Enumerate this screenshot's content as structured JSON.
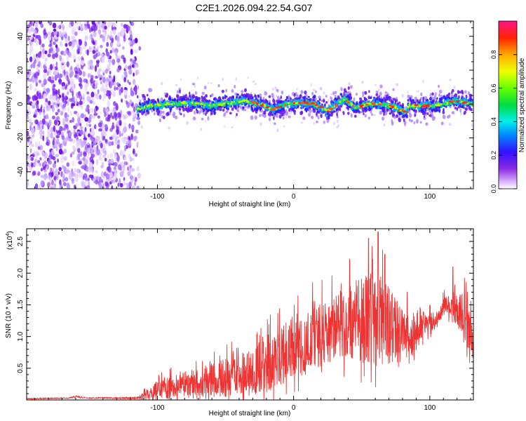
{
  "title": "C2E1.2026.094.22.54.G07",
  "chart_data": [
    {
      "type": "heatmap",
      "title": "C2E1.2026.094.22.54.G07",
      "xlabel": "Height of straight line (km)",
      "ylabel": "Frequency (Hz)",
      "xlim": [
        -196,
        132
      ],
      "ylim": [
        -50,
        49
      ],
      "xticks": [
        -100,
        0,
        100
      ],
      "yticks": [
        -40,
        -20,
        0,
        20,
        40
      ],
      "colorbar": {
        "label": "Normalized spectral amplitude",
        "range": [
          0,
          1
        ],
        "ticks": [
          "0.0",
          "0.2",
          "0.4",
          "0.6",
          "0.8"
        ]
      },
      "noise_region_x": [
        -196,
        -115
      ],
      "trace": [
        {
          "x": -115,
          "y": -3
        },
        {
          "x": -105,
          "y": -1
        },
        {
          "x": -90,
          "y": 0
        },
        {
          "x": -75,
          "y": 1
        },
        {
          "x": -60,
          "y": -1
        },
        {
          "x": -45,
          "y": 1
        },
        {
          "x": -35,
          "y": 2
        },
        {
          "x": -25,
          "y": 0
        },
        {
          "x": -15,
          "y": -3
        },
        {
          "x": -5,
          "y": 0
        },
        {
          "x": 5,
          "y": 1
        },
        {
          "x": 15,
          "y": 0
        },
        {
          "x": 25,
          "y": -4
        },
        {
          "x": 32,
          "y": 0
        },
        {
          "x": 38,
          "y": 3
        },
        {
          "x": 45,
          "y": -2
        },
        {
          "x": 55,
          "y": 0
        },
        {
          "x": 65,
          "y": 0
        },
        {
          "x": 75,
          "y": -2
        },
        {
          "x": 82,
          "y": -5
        },
        {
          "x": 85,
          "y": -1
        },
        {
          "x": 100,
          "y": -1
        },
        {
          "x": 110,
          "y": 0
        },
        {
          "x": 118,
          "y": 2
        },
        {
          "x": 132,
          "y": 0
        }
      ]
    },
    {
      "type": "line",
      "xlabel": "Height of straight line (km)",
      "ylabel": "SNR (10 * v/v)",
      "y_multiplier": "(x10",
      "y_multiplier_exp": "4",
      "y_multiplier_close": ")",
      "xlim": [
        -196,
        132
      ],
      "ylim": [
        0,
        2.7
      ],
      "xticks": [
        -100,
        0,
        100
      ],
      "yticks": [
        "0.5",
        "1.0",
        "1.5",
        "2.0",
        "2.5"
      ],
      "color": "#ee3333",
      "series": [
        {
          "name": "SNR",
          "envelope": [
            {
              "x": -196,
              "base": 0.02,
              "amp": 0.01
            },
            {
              "x": -165,
              "base": 0.03,
              "amp": 0.01
            },
            {
              "x": -160,
              "base": 0.05,
              "amp": 0.02
            },
            {
              "x": -150,
              "base": 0.03,
              "amp": 0.01
            },
            {
              "x": -115,
              "base": 0.03,
              "amp": 0.02
            },
            {
              "x": -100,
              "base": 0.15,
              "amp": 0.15
            },
            {
              "x": -80,
              "base": 0.25,
              "amp": 0.2
            },
            {
              "x": -70,
              "base": 0.25,
              "amp": 0.25
            },
            {
              "x": -50,
              "base": 0.35,
              "amp": 0.3
            },
            {
              "x": -30,
              "base": 0.45,
              "amp": 0.35
            },
            {
              "x": -15,
              "base": 0.6,
              "amp": 0.45
            },
            {
              "x": 0,
              "base": 0.85,
              "amp": 0.5
            },
            {
              "x": 10,
              "base": 0.9,
              "amp": 0.5
            },
            {
              "x": 25,
              "base": 1.1,
              "amp": 0.5
            },
            {
              "x": 40,
              "base": 1.25,
              "amp": 0.6
            },
            {
              "x": 55,
              "base": 1.3,
              "amp": 0.75
            },
            {
              "x": 65,
              "base": 1.25,
              "amp": 0.75
            },
            {
              "x": 75,
              "base": 1.05,
              "amp": 0.55
            },
            {
              "x": 85,
              "base": 1.0,
              "amp": 0.45
            },
            {
              "x": 95,
              "base": 1.2,
              "amp": 0.2
            },
            {
              "x": 105,
              "base": 1.25,
              "amp": 0.12
            },
            {
              "x": 110,
              "base": 1.45,
              "amp": 0.15
            },
            {
              "x": 118,
              "base": 1.5,
              "amp": 0.2
            },
            {
              "x": 125,
              "base": 1.3,
              "amp": 0.4
            },
            {
              "x": 132,
              "base": 1.0,
              "amp": 0.3
            }
          ],
          "peaks": [
            {
              "x": 55,
              "y": 2.55
            },
            {
              "x": 62,
              "y": 2.65
            },
            {
              "x": 67,
              "y": 2.3
            },
            {
              "x": 117,
              "y": 2.1
            }
          ]
        }
      ]
    }
  ]
}
